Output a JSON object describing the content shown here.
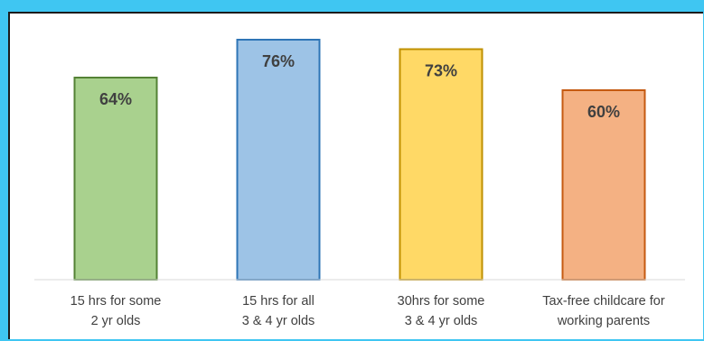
{
  "chart_data": {
    "type": "bar",
    "categories": [
      [
        "15 hrs for some",
        "2 yr olds"
      ],
      [
        "15 hrs for all",
        "3 & 4 yr olds"
      ],
      [
        "30hrs for some",
        "3 & 4 yr olds"
      ],
      [
        "Tax-free childcare for",
        "working parents"
      ]
    ],
    "values": [
      64,
      76,
      73,
      60
    ],
    "data_labels": [
      "64%",
      "76%",
      "73%",
      "60%"
    ],
    "ylim": [
      0,
      80
    ],
    "grid": false,
    "legend": "none",
    "colors": {
      "fills": [
        "#a9d18e",
        "#9dc3e6",
        "#ffd966",
        "#f4b183"
      ],
      "strokes": [
        "#548235",
        "#2e75b6",
        "#bf9000",
        "#c55a11"
      ],
      "axis": "#d9d9d9",
      "text": "#404040",
      "page_background": "#3fc6f2",
      "panel_border": "#1b1b1b"
    }
  }
}
